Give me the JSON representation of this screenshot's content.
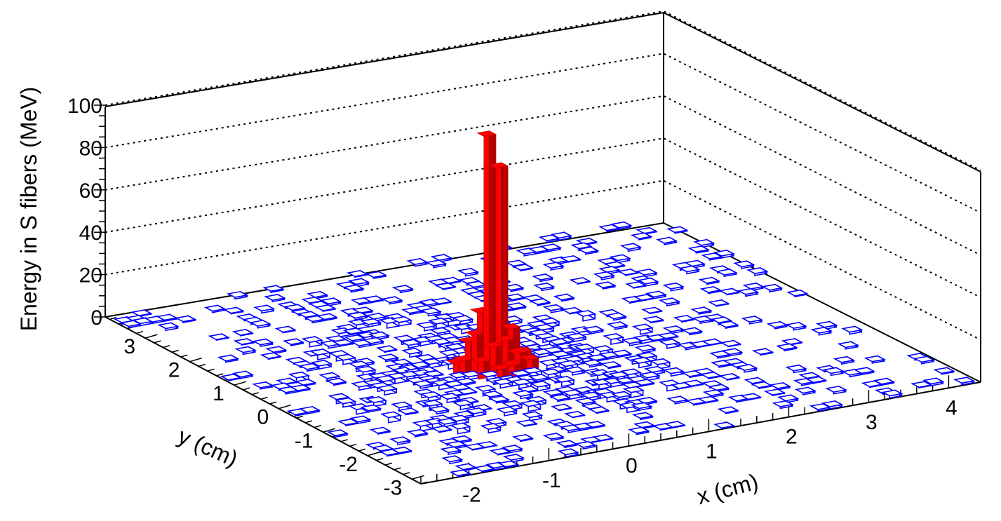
{
  "chart_data": {
    "type": "lego3d",
    "zlabel": "Energy in S fibers (MeV)",
    "xlabel": "x (cm)",
    "ylabel": "y (cm)",
    "zlim": [
      0,
      100
    ],
    "xlim": [
      -2.6,
      4.4
    ],
    "ylim": [
      -3.2,
      3.9
    ],
    "z_ticks": [
      "0",
      "20",
      "40",
      "60",
      "80",
      "100"
    ],
    "x_ticks": [
      "-2",
      "-1",
      "0",
      "1",
      "2",
      "3",
      "4"
    ],
    "y_ticks": [
      "-3",
      "-2",
      "-1",
      "0",
      "1",
      "2",
      "3"
    ],
    "grid": "dotted horizontal lines on back wall",
    "colors": {
      "background_bars": "#0000ff",
      "core_bars": "#ff0000",
      "core_side": "#b40000",
      "axis": "#000000"
    },
    "core_bins": [
      {
        "x": 0.0,
        "y": 0.0,
        "z": 112
      },
      {
        "x": 0.15,
        "y": 0.0,
        "z": 96
      },
      {
        "x": 0.0,
        "y": 0.15,
        "z": 27
      },
      {
        "x": 0.15,
        "y": 0.15,
        "z": 26
      },
      {
        "x": -0.15,
        "y": 0.0,
        "z": 19
      },
      {
        "x": 0.3,
        "y": 0.0,
        "z": 19
      },
      {
        "x": -0.15,
        "y": 0.15,
        "z": 14
      },
      {
        "x": 0.0,
        "y": -0.15,
        "z": 14
      },
      {
        "x": 0.15,
        "y": -0.15,
        "z": 16
      },
      {
        "x": 0.3,
        "y": 0.15,
        "z": 12
      },
      {
        "x": -0.3,
        "y": 0.0,
        "z": 8
      },
      {
        "x": 0.45,
        "y": 0.0,
        "z": 7
      },
      {
        "x": -0.15,
        "y": -0.15,
        "z": 8
      },
      {
        "x": 0.3,
        "y": -0.15,
        "z": 9
      },
      {
        "x": 0.0,
        "y": 0.3,
        "z": 6
      },
      {
        "x": 0.15,
        "y": -0.3,
        "z": 6
      },
      {
        "x": -0.3,
        "y": 0.15,
        "z": 5
      },
      {
        "x": 0.45,
        "y": -0.15,
        "z": 5
      },
      {
        "x": 0.0,
        "y": -0.3,
        "z": 5
      }
    ],
    "background_bins": "many low-energy bins (about 0–2 MeV) spread over the whole x–y plane"
  }
}
